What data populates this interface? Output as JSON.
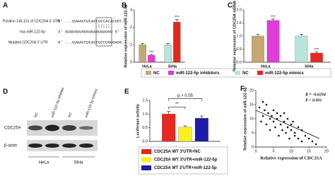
{
  "panel_a": {
    "label": "A",
    "rows": [
      {
        "name": "Position 145-151 of CDC25A 3' UTR",
        "seq": "5'  ...UUAACCUCACCUCCACACUCC..."
      },
      {
        "name": "hsa-miR-122-5p",
        "seq": "3'  GUUUGGUGUGUGAGUGAGGU  5'"
      },
      {
        "name": "Mutated CDC25A 3' UTR",
        "seq": "5'  ...UUAACCUCACCUCCUGUGAGG..."
      }
    ]
  },
  "panel_d": {
    "label": "D",
    "lanes": [
      "NC",
      "miR-122-5p inhibitor",
      "NC",
      "miR-122-5p mimics"
    ],
    "proteins": [
      "CDC25A",
      "β-actin"
    ],
    "groups": [
      "HeLa",
      "SiHa"
    ]
  },
  "chart_data": [
    {
      "type": "bar",
      "panel": "B",
      "y_label": "Relative expression of miR-122-5p",
      "categories": [
        "HeLa",
        "SiHa"
      ],
      "series": [
        {
          "name": "NC",
          "color": "#c8a870",
          "values": [
            1.0,
            null
          ],
          "errors": [
            0.08,
            null
          ]
        },
        {
          "name": "miR-122-5p inhibitors",
          "color": "#e03cd8",
          "values": [
            0.4,
            null
          ],
          "errors": [
            0.05,
            null
          ]
        },
        {
          "name": "NC",
          "color": "#b8e4dc",
          "values": [
            null,
            1.0
          ],
          "errors": [
            null,
            0.08
          ]
        },
        {
          "name": "miR-122-5p mimics",
          "color": "#e8281e",
          "values": [
            null,
            2.3
          ],
          "errors": [
            null,
            0.15
          ]
        }
      ],
      "annotations": [
        {
          "text": "***",
          "series": 1,
          "category": 0
        },
        {
          "text": "***",
          "series": 3,
          "category": 1
        }
      ],
      "ylim": [
        0,
        3
      ],
      "yticks": [
        0,
        1,
        2,
        3
      ]
    },
    {
      "type": "bar",
      "panel": "C",
      "y_label": "Relative expression of CDC25A mRNA",
      "categories": [
        "HeLa",
        "SiHa"
      ],
      "series": [
        {
          "color": "#c8a870",
          "values": [
            1.0,
            null
          ],
          "errors": [
            0.06,
            null
          ]
        },
        {
          "color": "#e03cd8",
          "values": [
            1.6,
            null
          ],
          "errors": [
            0.05,
            null
          ]
        },
        {
          "color": "#b8e4dc",
          "values": [
            null,
            1.0
          ],
          "errors": [
            null,
            0.07
          ]
        },
        {
          "color": "#e8281e",
          "values": [
            null,
            0.35
          ],
          "errors": [
            null,
            0.04
          ]
        }
      ],
      "annotations": [
        {
          "text": "***",
          "series": 1,
          "category": 0
        },
        {
          "text": "***",
          "series": 3,
          "category": 1
        }
      ],
      "ylim": [
        0,
        2
      ],
      "yticks": [
        {
          "value": 0,
          "label": "0.0"
        },
        0.5,
        {
          "value": 1,
          "label": "1.0"
        },
        1.5,
        {
          "value": 2,
          "label": "2.0"
        }
      ]
    },
    {
      "type": "bar",
      "panel": "E",
      "y_label": "Luciferase activity",
      "categories": [
        null
      ],
      "series": [
        {
          "name": "CDC25A WT 3'UTR+NC",
          "color": "#e8281e",
          "values": [
            1.0
          ],
          "errors": [
            0.1
          ]
        },
        {
          "name": "CDC25A WT 3'UTR+miR-122-5p",
          "color": "#f8f020",
          "values": [
            0.52
          ],
          "errors": [
            0.05
          ]
        },
        {
          "name": "CDC25A MT 3'UTR+miR-122-5p",
          "color": "#1c1ca8",
          "values": [
            0.85
          ],
          "errors": [
            0.08
          ]
        }
      ],
      "brackets": [
        {
          "text": "**",
          "from": 0,
          "to": 1
        },
        {
          "text": "p > 0.05",
          "from": 0,
          "to": 2
        }
      ],
      "ylim": [
        0,
        1.5
      ],
      "yticks": [
        {
          "value": 0,
          "label": "0.0"
        },
        0.5,
        {
          "value": 1,
          "label": "1.0"
        },
        1.5
      ]
    },
    {
      "type": "scatter",
      "panel": "F",
      "x_label": "Relative  expression  of CDC25A",
      "y_label": "Relative expression of miR-122-5p",
      "color": "#111111",
      "annotations": [
        "R  = -0.6294",
        "P < 0.001"
      ],
      "x": [
        1,
        1.5,
        2,
        2,
        2.5,
        3,
        3,
        3.5,
        4,
        4,
        4.5,
        5,
        5,
        5.5,
        6,
        6,
        6.5,
        7,
        7,
        7.5,
        8,
        8,
        8.5,
        9,
        9,
        9.5,
        10,
        10,
        10.5,
        11,
        11,
        12,
        12,
        13,
        13,
        14,
        15,
        16,
        17
      ],
      "y": [
        14,
        9,
        16,
        11,
        13,
        8,
        15,
        12,
        10,
        6,
        11,
        13,
        9,
        7,
        12,
        10,
        4,
        11,
        8,
        6,
        12,
        9,
        5,
        10,
        7,
        3,
        8,
        6,
        9,
        5,
        4,
        7,
        3,
        6,
        2,
        4,
        3,
        2,
        1
      ],
      "fit": {
        "x": [
          0,
          18
        ],
        "y": [
          13,
          3
        ]
      },
      "xlim": [
        0,
        20
      ],
      "xticks": [
        0,
        5,
        10,
        15,
        20
      ],
      "ylim": [
        0,
        20
      ],
      "yticks": [
        0,
        5,
        10,
        15,
        20
      ]
    }
  ]
}
